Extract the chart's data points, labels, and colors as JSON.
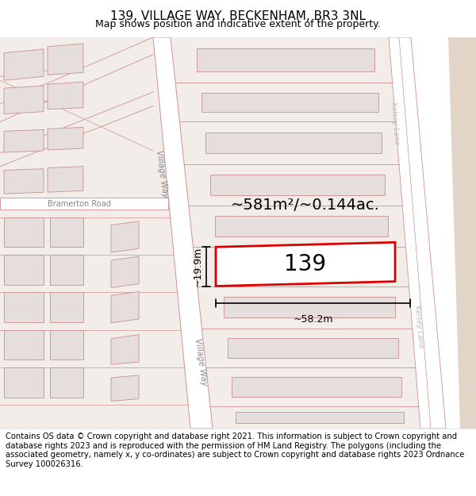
{
  "title": "139, VILLAGE WAY, BECKENHAM, BR3 3NL",
  "subtitle": "Map shows position and indicative extent of the property.",
  "area_text": "~581m²/~0.144ac.",
  "property_label": "139",
  "dim_width": "~58.2m",
  "dim_height": "~19.9m",
  "footer": "Contains OS data © Crown copyright and database right 2021. This information is subject to Crown copyright and database rights 2023 and is reproduced with the permission of HM Land Registry. The polygons (including the associated geometry, namely x, y co-ordinates) are subject to Crown copyright and database rights 2023 Ordnance Survey 100026316.",
  "map_bg": "#f2ede9",
  "road_fill": "#ffffff",
  "road_line": "#d09090",
  "plot_line": "#d09090",
  "building_fill": "#e6dddd",
  "building_line": "#c89090",
  "highlight_line": "#dd0000",
  "highlight_fill": "#ffffff",
  "tan_bg": "#e2d5c8",
  "title_fontsize": 11,
  "subtitle_fontsize": 9,
  "label_fontsize": 20,
  "area_fontsize": 14,
  "dim_fontsize": 9,
  "footer_fontsize": 7.2,
  "road_label_color": "#888888",
  "road_label_size": 7.5,
  "bramerton_label_size": 7.0
}
